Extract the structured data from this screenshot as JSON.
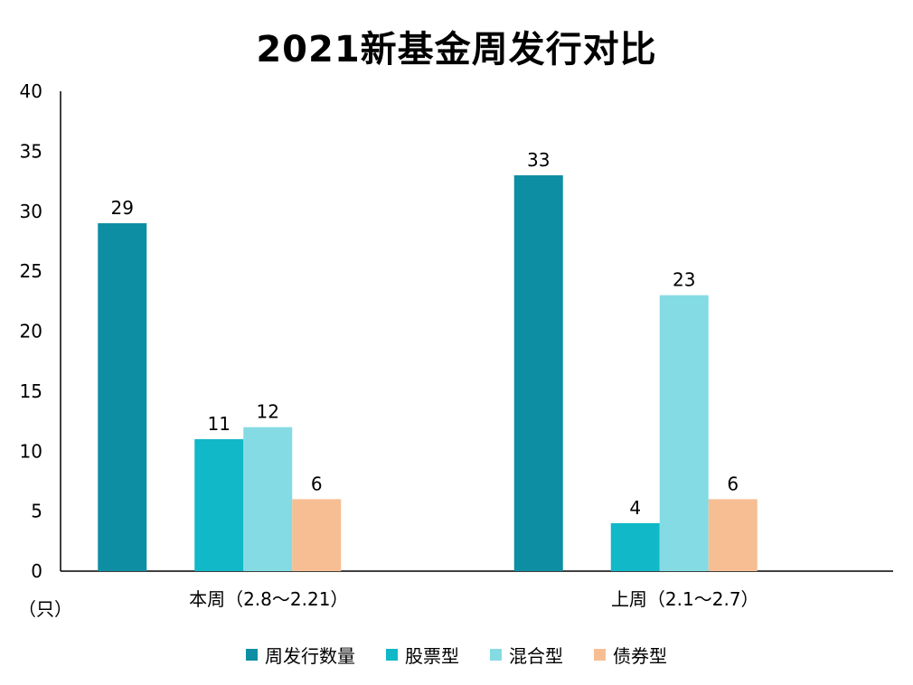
{
  "chart_data": {
    "type": "bar",
    "title": "2021新基金周发行对比",
    "unit": "（只）",
    "categories": [
      "本周（2.8～2.21）",
      "上周（2.1～2.7）"
    ],
    "series": [
      {
        "name": "周发行数量",
        "color": "#0e8ea3",
        "values": [
          29,
          33
        ]
      },
      {
        "name": "股票型",
        "color": "#10b8c8",
        "values": [
          11,
          4
        ]
      },
      {
        "name": "混合型",
        "color": "#84dbe3",
        "values": [
          12,
          23
        ]
      },
      {
        "name": "债券型",
        "color": "#f7be93",
        "values": [
          6,
          6
        ]
      }
    ],
    "ylim": [
      0,
      40
    ],
    "yticks": [
      "0",
      "5",
      "10",
      "15",
      "20",
      "25",
      "30",
      "35",
      "40"
    ],
    "grid": false,
    "legend_position": "bottom"
  }
}
